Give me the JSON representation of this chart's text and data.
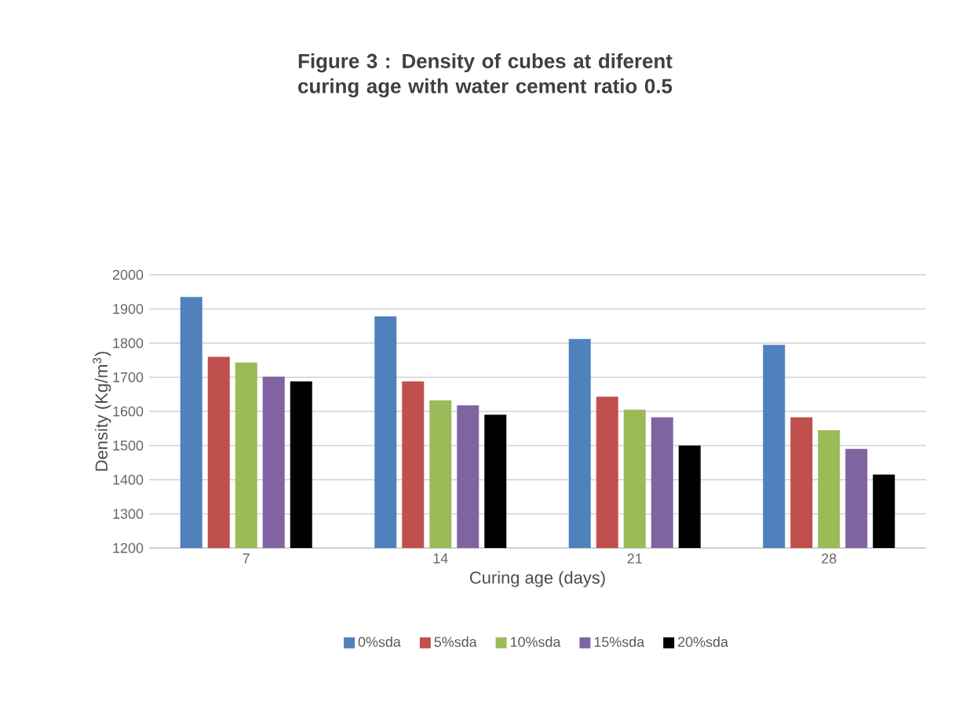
{
  "chart_data": {
    "type": "bar",
    "title": "Figure 3 : Density of cubes at diferent curing age with water cement ratio 0.5",
    "xlabel": "Curing age (days)",
    "ylabel": "Density (Kg/m$^{3}$)",
    "categories": [
      "7",
      "14",
      "21",
      "28"
    ],
    "series": [
      {
        "name": "0%sda",
        "color": "#4f81bd",
        "values": [
          1935,
          1878,
          1812,
          1795
        ]
      },
      {
        "name": "5%sda",
        "color": "#c0504d",
        "values": [
          1760,
          1688,
          1643,
          1583
        ]
      },
      {
        "name": "10%sda",
        "color": "#9bbb59",
        "values": [
          1743,
          1632,
          1605,
          1545
        ]
      },
      {
        "name": "15%sda",
        "color": "#8064a2",
        "values": [
          1702,
          1618,
          1583,
          1490
        ]
      },
      {
        "name": "20%sda",
        "color": "#000000",
        "values": [
          1688,
          1590,
          1500,
          1415
        ]
      }
    ],
    "ylim": [
      1200,
      2000
    ],
    "yticks": [
      1200,
      1300,
      1400,
      1500,
      1600,
      1700,
      1800,
      1900,
      2000
    ],
    "grid": "y",
    "legend": "bottom"
  }
}
